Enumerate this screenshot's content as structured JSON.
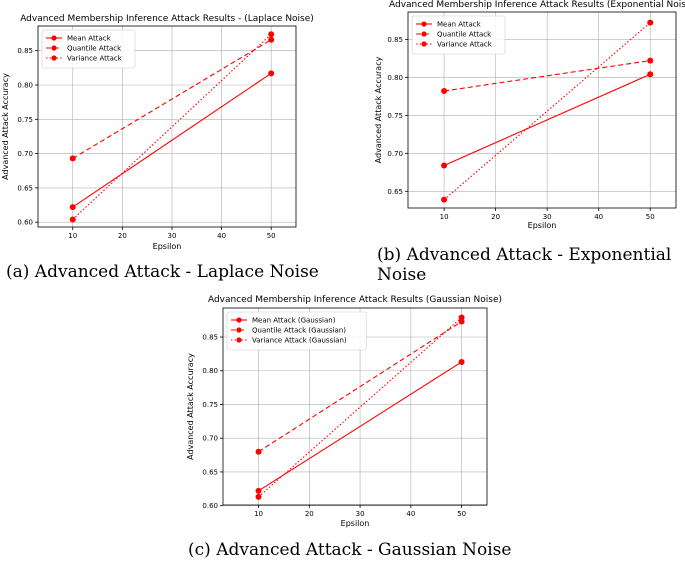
{
  "captions": {
    "a": "(a) Advanced Attack - Laplace Noise",
    "b": "(b) Advanced Attack - Exponential Noise",
    "c": "(c) Advanced Attack - Gaussian Noise"
  },
  "colors": {
    "series": "#ff0000",
    "grid": "#b0b0b0",
    "axes": "#000000"
  },
  "chart_data": [
    {
      "type": "line",
      "title": "Advanced Membership Inference Attack Results - (Laplace Noise)",
      "xlabel": "Epsilon",
      "ylabel": "Advanced Attack Accuracy",
      "x": [
        10,
        50
      ],
      "xlim": [
        3,
        55
      ],
      "ylim": [
        0.593,
        0.886
      ],
      "xticks": [
        10,
        20,
        30,
        40,
        50
      ],
      "yticks": [
        0.6,
        0.65,
        0.7,
        0.75,
        0.8,
        0.85
      ],
      "grid": true,
      "legend": "top-left",
      "series": [
        {
          "name": "Mean Attack",
          "values": [
            0.622,
            0.817
          ],
          "dash": "solid"
        },
        {
          "name": "Quantile Attack",
          "values": [
            0.693,
            0.866
          ],
          "dash": "dashed"
        },
        {
          "name": "Variance Attack",
          "values": [
            0.604,
            0.874
          ],
          "dash": "dotted"
        }
      ]
    },
    {
      "type": "line",
      "title": "Advanced Membership Inference Attack Results (Exponential Noise)",
      "xlabel": "Epsilon",
      "ylabel": "Advanced Attack Accuracy",
      "x": [
        10,
        50
      ],
      "xlim": [
        3,
        55
      ],
      "ylim": [
        0.628,
        0.886
      ],
      "xticks": [
        10,
        20,
        30,
        40,
        50
      ],
      "yticks": [
        0.65,
        0.7,
        0.75,
        0.8,
        0.85
      ],
      "grid": true,
      "legend": "top-left",
      "series": [
        {
          "name": "Mean Attack",
          "values": [
            0.684,
            0.804
          ],
          "dash": "solid"
        },
        {
          "name": "Quantile Attack",
          "values": [
            0.782,
            0.822
          ],
          "dash": "dashed"
        },
        {
          "name": "Variance Attack",
          "values": [
            0.639,
            0.872
          ],
          "dash": "dotted"
        }
      ]
    },
    {
      "type": "line",
      "title": "Advanced Membership Inference Attack Results (Gaussian Noise)",
      "xlabel": "Epsilon",
      "ylabel": "Advanced Attack Accuracy",
      "x": [
        10,
        50
      ],
      "xlim": [
        3,
        55
      ],
      "ylim": [
        0.601,
        0.893
      ],
      "xticks": [
        10,
        20,
        30,
        40,
        50
      ],
      "yticks": [
        0.6,
        0.65,
        0.7,
        0.75,
        0.8,
        0.85
      ],
      "grid": true,
      "legend": "top-left",
      "series": [
        {
          "name": "Mean Attack (Gaussian)",
          "values": [
            0.622,
            0.813
          ],
          "dash": "solid"
        },
        {
          "name": "Quantile Attack (Gaussian)",
          "values": [
            0.68,
            0.873
          ],
          "dash": "dashed"
        },
        {
          "name": "Variance Attack (Gaussian)",
          "values": [
            0.613,
            0.879
          ],
          "dash": "dotted"
        }
      ]
    }
  ]
}
